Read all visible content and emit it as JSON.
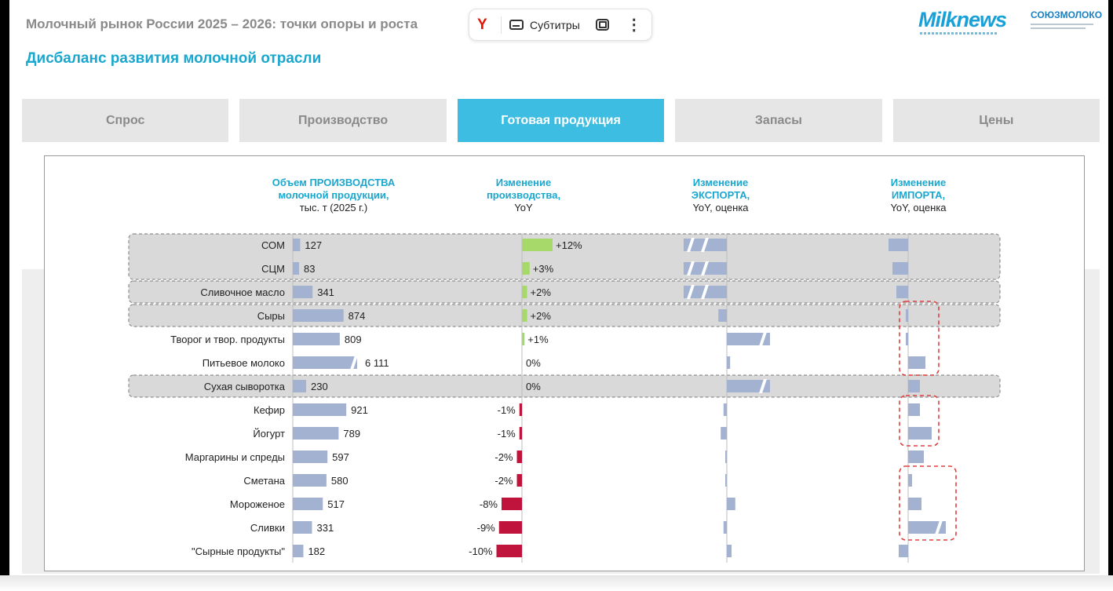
{
  "header": {
    "title": "Молочный рынок России 2025 – 2026: точки опоры и роста",
    "subtitle": "Дисбаланс развития молочной отрасли"
  },
  "player": {
    "subtitles_label": "Субтитры",
    "yandex_glyph": "Y",
    "more_glyph": "⋮"
  },
  "logos": {
    "milknews": "Milknews",
    "soyuzmoloko": "СОЮЗМОЛОКО"
  },
  "tabs": [
    {
      "label": "Спрос",
      "active": false
    },
    {
      "label": "Производство",
      "active": false
    },
    {
      "label": "Готовая продукция",
      "active": true
    },
    {
      "label": "Запасы",
      "active": false
    },
    {
      "label": "Цены",
      "active": false
    }
  ],
  "colors": {
    "accent": "#1aa7cf",
    "tab_active": "#3dbde1",
    "bar_volume": "#a3b2d0",
    "positive": "#a6d96a",
    "negative": "#c0143c",
    "highlight_box": "#d9d9d9",
    "import_marker": "#e04040"
  },
  "chart_data": {
    "type": "bar",
    "columns": [
      {
        "title_lines": [
          "Объем ПРОИЗВОДСТВА",
          "молочной продукции,"
        ],
        "subtitle": "тыс. т (2025 г.)"
      },
      {
        "title_lines": [
          "Изменение",
          "производства,"
        ],
        "subtitle": "YoY"
      },
      {
        "title_lines": [
          "Изменение",
          "ЭКСПОРТА,"
        ],
        "subtitle": "YoY, оценка"
      },
      {
        "title_lines": [
          "Изменение",
          "ИМПОРТА,"
        ],
        "subtitle": "YoY, оценка"
      }
    ],
    "categories": [
      "СОМ",
      "СЦМ",
      "Сливочное масло",
      "Сыры",
      "Творог и твор. продукты",
      "Питьевое молоко",
      "Сухая сыворотка",
      "Кефир",
      "Йогурт",
      "Маргарины и спреды",
      "Сметана",
      "Мороженое",
      "Сливки",
      "\"Сырные продукты\""
    ],
    "volume_labels": [
      "127",
      "83",
      "341",
      "874",
      "809",
      "6 111",
      "230",
      "921",
      "789",
      "597",
      "580",
      "517",
      "331",
      "182"
    ],
    "volume_values": [
      127,
      83,
      341,
      874,
      809,
      6111,
      230,
      921,
      789,
      597,
      580,
      517,
      331,
      182
    ],
    "volume_axis_break": [
      false,
      false,
      false,
      false,
      false,
      true,
      false,
      false,
      false,
      false,
      false,
      false,
      false,
      false
    ],
    "production_change_labels": [
      "+12%",
      "+3%",
      "+2%",
      "+2%",
      "+1%",
      "0%",
      "0%",
      "-1%",
      "-1%",
      "-2%",
      "-2%",
      "-8%",
      "-9%",
      "-10%"
    ],
    "production_change_pct": [
      12,
      3,
      2,
      2,
      1,
      0,
      0,
      -1,
      -1,
      -2,
      -2,
      -8,
      -9,
      -10
    ],
    "export_change_pct": [
      -60,
      -60,
      -40,
      -18,
      40,
      7,
      42,
      -7,
      -13,
      -1,
      -2,
      18,
      -7,
      10
    ],
    "export_axis_break": [
      true,
      true,
      true,
      false,
      true,
      false,
      true,
      false,
      false,
      false,
      false,
      false,
      false,
      false
    ],
    "import_change_pct": [
      -25,
      -20,
      -15,
      -3,
      -3,
      22,
      15,
      15,
      30,
      20,
      5,
      17,
      45,
      -12
    ],
    "import_axis_break": [
      false,
      false,
      false,
      false,
      false,
      false,
      false,
      false,
      false,
      false,
      false,
      false,
      true,
      false
    ],
    "highlighted_groups": [
      [
        0,
        1
      ],
      [
        2,
        2
      ],
      [
        3,
        3
      ],
      [
        6,
        6
      ]
    ],
    "import_markers": [
      [
        3,
        5
      ],
      [
        7,
        8
      ],
      [
        10,
        12
      ]
    ]
  }
}
